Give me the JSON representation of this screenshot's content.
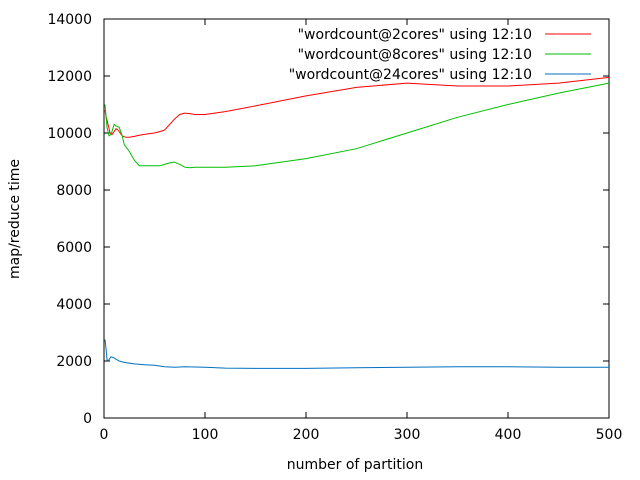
{
  "chart_data": {
    "type": "line",
    "title": "",
    "xlabel": "number of partition",
    "ylabel": "map/reduce time",
    "xlim": [
      0,
      500
    ],
    "ylim": [
      0,
      14000
    ],
    "x_ticks": [
      0,
      100,
      200,
      300,
      400,
      500
    ],
    "y_ticks": [
      0,
      2000,
      4000,
      6000,
      8000,
      10000,
      12000,
      14000
    ],
    "grid": false,
    "legend_position": "top-right",
    "series": [
      {
        "name": "\"wordcount@2cores\" using 12:10",
        "color": "#ff0000",
        "x": [
          1,
          2,
          4,
          6,
          8,
          10,
          12,
          14,
          16,
          18,
          20,
          22,
          25,
          30,
          35,
          40,
          45,
          50,
          55,
          60,
          65,
          70,
          75,
          80,
          85,
          90,
          95,
          100,
          120,
          150,
          200,
          250,
          300,
          350,
          400,
          450,
          500
        ],
        "y": [
          10800,
          10600,
          10300,
          10000,
          9950,
          10050,
          10150,
          10100,
          10000,
          9900,
          9870,
          9850,
          9850,
          9880,
          9920,
          9950,
          9980,
          10000,
          10050,
          10100,
          10300,
          10500,
          10650,
          10700,
          10680,
          10650,
          10650,
          10650,
          10750,
          10950,
          11300,
          11600,
          11750,
          11650,
          11650,
          11750,
          11950
        ]
      },
      {
        "name": "\"wordcount@8cores\" using 12:10",
        "color": "#00c000",
        "x": [
          1,
          3,
          5,
          7,
          10,
          12,
          15,
          18,
          20,
          25,
          30,
          35,
          40,
          45,
          50,
          55,
          60,
          65,
          70,
          75,
          80,
          85,
          90,
          100,
          120,
          150,
          200,
          250,
          300,
          350,
          400,
          450,
          500
        ],
        "y": [
          11000,
          10200,
          9900,
          9950,
          10300,
          10250,
          10200,
          9900,
          9600,
          9350,
          9050,
          8850,
          8850,
          8850,
          8850,
          8850,
          8900,
          8950,
          8980,
          8900,
          8800,
          8780,
          8800,
          8800,
          8800,
          8850,
          9100,
          9450,
          10000,
          10550,
          11000,
          11400,
          11750
        ]
      },
      {
        "name": "\"wordcount@24cores\" using 12:10",
        "color": "#0070c0",
        "x": [
          1,
          2,
          3,
          4,
          5,
          7,
          10,
          15,
          20,
          30,
          40,
          50,
          60,
          70,
          80,
          90,
          100,
          120,
          150,
          200,
          250,
          300,
          350,
          400,
          450,
          500
        ],
        "y": [
          2750,
          2450,
          2050,
          2000,
          2050,
          2150,
          2100,
          2000,
          1950,
          1900,
          1870,
          1850,
          1800,
          1780,
          1800,
          1790,
          1780,
          1750,
          1740,
          1740,
          1760,
          1780,
          1800,
          1800,
          1780,
          1780
        ]
      }
    ]
  }
}
